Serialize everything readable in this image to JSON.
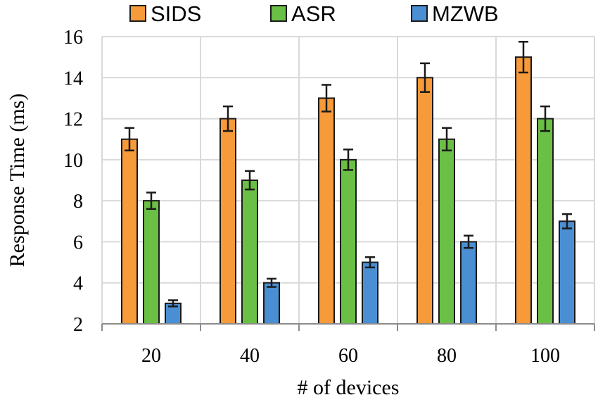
{
  "chart_data": {
    "type": "bar",
    "categories": [
      "20",
      "40",
      "60",
      "80",
      "100"
    ],
    "series": [
      {
        "name": "SIDS",
        "color": "#f79a3a",
        "values": [
          11,
          12,
          13,
          14,
          15
        ],
        "error": [
          0.55,
          0.6,
          0.65,
          0.7,
          0.75
        ]
      },
      {
        "name": "ASR",
        "color": "#6abf45",
        "values": [
          8,
          9,
          10,
          11,
          12
        ],
        "error": [
          0.4,
          0.45,
          0.5,
          0.55,
          0.6
        ]
      },
      {
        "name": "MZWB",
        "color": "#4a8fd3",
        "values": [
          3,
          4,
          5,
          6,
          7
        ],
        "error": [
          0.15,
          0.2,
          0.25,
          0.3,
          0.35
        ]
      }
    ],
    "xlabel": "# of devices",
    "ylabel": "Response Time (ms)",
    "ylim": [
      2,
      16
    ],
    "yticks": [
      "2",
      "4",
      "6",
      "8",
      "10",
      "12",
      "14",
      "16"
    ],
    "grid": true,
    "legend": "top"
  }
}
